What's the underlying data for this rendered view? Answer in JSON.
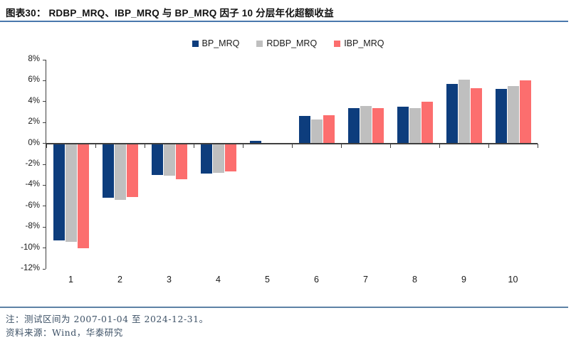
{
  "header": {
    "figure_label": "图表30：",
    "title": "RDBP_MRQ、IBP_MRQ 与 BP_MRQ 因子 10 分层年化超额收益"
  },
  "chart_data": {
    "type": "bar",
    "title": "RDBP_MRQ、IBP_MRQ 与 BP_MRQ 因子 10 分层年化超额收益",
    "categories": [
      "1",
      "2",
      "3",
      "4",
      "5",
      "6",
      "7",
      "8",
      "9",
      "10"
    ],
    "series": [
      {
        "name": "BP_MRQ",
        "color": "#0d3d7d",
        "values": [
          -9.3,
          -5.2,
          -3.0,
          -2.9,
          0.25,
          2.6,
          3.4,
          3.5,
          5.7,
          5.2
        ]
      },
      {
        "name": "RDBP_MRQ",
        "color": "#bfbfbf",
        "values": [
          -9.4,
          -5.4,
          -3.1,
          -2.8,
          0.0,
          2.3,
          3.6,
          3.4,
          6.1,
          5.5
        ]
      },
      {
        "name": "IBP_MRQ",
        "color": "#fc6e6e",
        "values": [
          -10.0,
          -5.1,
          -3.4,
          -2.7,
          -0.1,
          2.7,
          3.4,
          4.0,
          5.3,
          6.0
        ]
      }
    ],
    "ylim": [
      -12,
      8
    ],
    "ytick_step": 2,
    "ytick_labels": [
      "8%",
      "6%",
      "4%",
      "2%",
      "0%",
      "-2%",
      "-4%",
      "-6%",
      "-8%",
      "-10%",
      "-12%"
    ],
    "xlabel": "",
    "ylabel": "",
    "unit": "percent",
    "legend_position": "top",
    "grid": false
  },
  "footer": {
    "note_label": "注：",
    "note_text": "测试区间为 2007-01-04 至 2024-12-31。",
    "source_label": "资料来源：",
    "source_text": "Wind，华泰研究"
  },
  "colors": {
    "accent_rule": "#4a78ad",
    "footer_rule": "#5d82a6",
    "axis": "#404040",
    "bar_navy": "#0d3d7d",
    "bar_gray": "#bfbfbf",
    "bar_red": "#fc6e6e"
  }
}
